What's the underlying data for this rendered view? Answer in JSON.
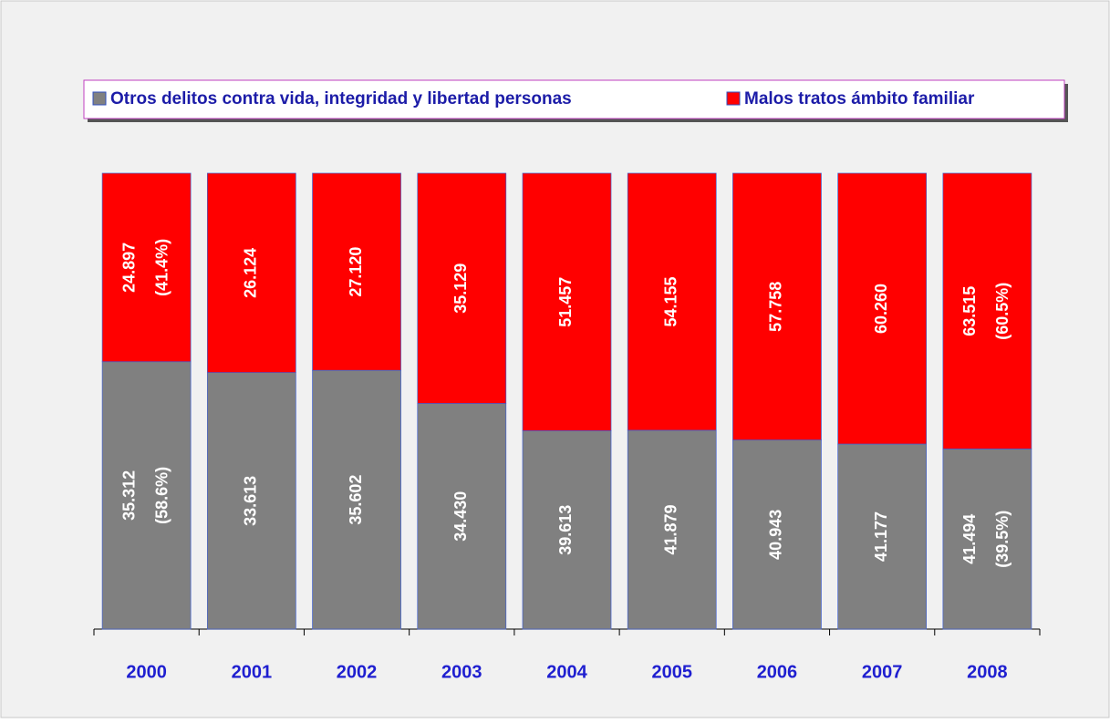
{
  "chart_data": {
    "type": "bar",
    "stacking": "percent",
    "categories": [
      "2000",
      "2001",
      "2002",
      "2003",
      "2004",
      "2005",
      "2006",
      "2007",
      "2008"
    ],
    "series": [
      {
        "name": "Otros delitos contra vida, integridad y libertad personas",
        "color": "#808080",
        "values": [
          35312,
          33613,
          35602,
          34430,
          39613,
          41879,
          40943,
          41177,
          41494
        ],
        "value_labels": [
          "35.312",
          "33.613",
          "35.602",
          "34.430",
          "39.613",
          "41.879",
          "40.943",
          "41.177",
          "41.494"
        ],
        "percent_labels": [
          "(58.6%)",
          null,
          null,
          null,
          null,
          null,
          null,
          null,
          "(39.5%)"
        ]
      },
      {
        "name": "Malos tratos ámbito familiar",
        "color": "#ff0000",
        "values": [
          24897,
          26124,
          27120,
          35129,
          51457,
          54155,
          57758,
          60260,
          63515
        ],
        "value_labels": [
          "24.897",
          "26.124",
          "27.120",
          "35.129",
          "51.457",
          "54.155",
          "57.758",
          "60.260",
          "63.515"
        ],
        "percent_labels": [
          "(41.4%)",
          null,
          null,
          null,
          null,
          null,
          null,
          null,
          "(60.5%)"
        ]
      }
    ],
    "legend": "top"
  }
}
